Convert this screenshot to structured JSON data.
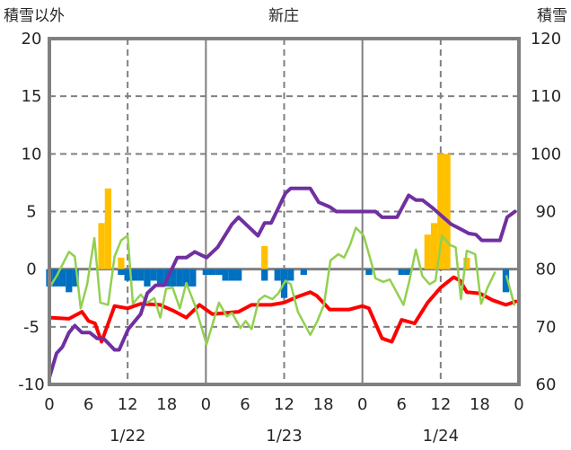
{
  "chart_data": {
    "type": "bar+line",
    "title": "新庄",
    "ylabel_left": "積雪以外",
    "ylabel_right": "積雪",
    "ylim_left": [
      -10,
      20
    ],
    "ylim_right": [
      60,
      120
    ],
    "yticks_left": [
      "20",
      "15",
      "10",
      "5",
      "0",
      "-5",
      "-10"
    ],
    "yticks_right": [
      "120",
      "110",
      "100",
      "90",
      "80",
      "70",
      "60"
    ],
    "xlim_hours": [
      0,
      72
    ],
    "xticks": [
      "0",
      "6",
      "12",
      "18",
      "0",
      "6",
      "12",
      "18",
      "0",
      "6",
      "12",
      "18",
      "0"
    ],
    "date_labels": [
      "1/22",
      "1/23",
      "1/24"
    ],
    "grid": true,
    "colors": {
      "orange_bar": "#ffc000",
      "blue_bar": "#0070c0",
      "red": "#ff0000",
      "green": "#92d050",
      "purple": "#7030a0",
      "frame": "#808080"
    },
    "bars_positive": [
      [
        8,
        4
      ],
      [
        9,
        7
      ],
      [
        11,
        1
      ],
      [
        33,
        2
      ],
      [
        58,
        3
      ],
      [
        59,
        4
      ],
      [
        60,
        10
      ],
      [
        61,
        10
      ],
      [
        64,
        1
      ]
    ],
    "bars_negative": [
      [
        0,
        -1.5
      ],
      [
        1,
        -1.5
      ],
      [
        2,
        -1.5
      ],
      [
        3,
        -2
      ],
      [
        4,
        -1.5
      ],
      [
        11,
        -0.5
      ],
      [
        12,
        -1
      ],
      [
        13,
        -1
      ],
      [
        14,
        -1
      ],
      [
        15,
        -1.5
      ],
      [
        16,
        -1
      ],
      [
        17,
        -1.3
      ],
      [
        18,
        -1.5
      ],
      [
        19,
        -1.5
      ],
      [
        20,
        -1.5
      ],
      [
        21,
        -1.5
      ],
      [
        22,
        -1.5
      ],
      [
        24,
        -0.5
      ],
      [
        25,
        -0.5
      ],
      [
        26,
        -0.5
      ],
      [
        27,
        -1
      ],
      [
        28,
        -1
      ],
      [
        29,
        -1
      ],
      [
        33,
        -1
      ],
      [
        35,
        -1
      ],
      [
        36,
        -2.5
      ],
      [
        37,
        -1
      ],
      [
        39,
        -0.5
      ],
      [
        49,
        -0.5
      ],
      [
        54,
        -0.5
      ],
      [
        55,
        -0.5
      ],
      [
        70,
        -2
      ]
    ],
    "series": [
      {
        "name": "red",
        "axis": "left",
        "points": [
          [
            0,
            -4.2
          ],
          [
            3,
            -4.3
          ],
          [
            5,
            -3.7
          ],
          [
            6,
            -4.5
          ],
          [
            7,
            -4.7
          ],
          [
            8,
            -6.3
          ],
          [
            10,
            -3.2
          ],
          [
            12,
            -3.4
          ],
          [
            14,
            -3.0
          ],
          [
            17,
            -3.1
          ],
          [
            19,
            -3.6
          ],
          [
            21,
            -4.2
          ],
          [
            23,
            -3.1
          ],
          [
            25,
            -3.9
          ],
          [
            27,
            -3.8
          ],
          [
            29,
            -3.7
          ],
          [
            31,
            -3.1
          ],
          [
            34,
            -3.1
          ],
          [
            36,
            -2.9
          ],
          [
            38,
            -2.4
          ],
          [
            40,
            -2.0
          ],
          [
            41,
            -2.3
          ],
          [
            43,
            -3.5
          ],
          [
            46,
            -3.5
          ],
          [
            48,
            -3.2
          ],
          [
            49,
            -3.4
          ],
          [
            51,
            -6.0
          ],
          [
            52.5,
            -6.3
          ],
          [
            54,
            -4.4
          ],
          [
            56,
            -4.7
          ],
          [
            58,
            -2.9
          ],
          [
            60,
            -1.6
          ],
          [
            62,
            -0.7
          ],
          [
            63,
            -1.0
          ],
          [
            64,
            -2.0
          ],
          [
            66,
            -2.1
          ],
          [
            68,
            -2.7
          ],
          [
            70,
            -3.1
          ],
          [
            71.5,
            -2.8
          ]
        ]
      },
      {
        "name": "green",
        "axis": "left",
        "points": [
          [
            0,
            -1.6
          ],
          [
            1.1,
            -0.6
          ],
          [
            3,
            1.5
          ],
          [
            3.9,
            1.1
          ],
          [
            4.8,
            -3.4
          ],
          [
            5.8,
            -1.3
          ],
          [
            6.9,
            2.7
          ],
          [
            7.8,
            -2.9
          ],
          [
            9,
            -3.1
          ],
          [
            10,
            1.1
          ],
          [
            11,
            2.5
          ],
          [
            12,
            2.9
          ],
          [
            12.8,
            -3.0
          ],
          [
            14,
            -2.2
          ],
          [
            15,
            -2.9
          ],
          [
            16.1,
            -2.5
          ],
          [
            17,
            -4.2
          ],
          [
            17.9,
            -1.7
          ],
          [
            18.9,
            -1.6
          ],
          [
            20,
            -3.4
          ],
          [
            21,
            -1.2
          ],
          [
            22.3,
            -3.1
          ],
          [
            24.1,
            -6.5
          ],
          [
            26,
            -2.9
          ],
          [
            27.2,
            -4.1
          ],
          [
            28,
            -3.8
          ],
          [
            29.3,
            -5.1
          ],
          [
            30.1,
            -4.5
          ],
          [
            31,
            -5.2
          ],
          [
            32.1,
            -2.7
          ],
          [
            33,
            -2.3
          ],
          [
            34.2,
            -2.6
          ],
          [
            35.1,
            -2.1
          ],
          [
            36.2,
            -1.0
          ],
          [
            37,
            -1.3
          ],
          [
            38.1,
            -3.7
          ],
          [
            40,
            -5.7
          ],
          [
            41.1,
            -4.5
          ],
          [
            42.1,
            -3.1
          ],
          [
            43.1,
            0.75
          ],
          [
            44.3,
            1.3
          ],
          [
            45.2,
            1.0
          ],
          [
            46.1,
            2.1
          ],
          [
            47,
            3.6
          ],
          [
            48.2,
            2.9
          ],
          [
            49.6,
            0.1
          ],
          [
            50,
            -0.8
          ],
          [
            51.2,
            -1.1
          ],
          [
            52.2,
            -0.9
          ],
          [
            54.3,
            -3.1
          ],
          [
            55.2,
            -1.0
          ],
          [
            56.2,
            1.7
          ],
          [
            57.2,
            -0.6
          ],
          [
            58.3,
            -1.3
          ],
          [
            59.2,
            -1.0
          ],
          [
            60.2,
            2.9
          ],
          [
            61.4,
            2.1
          ],
          [
            62.3,
            1.9
          ],
          [
            63.1,
            -2.6
          ],
          [
            64,
            1.6
          ],
          [
            65.3,
            1.3
          ],
          [
            66.2,
            -3.0
          ],
          [
            67.2,
            -1.6
          ],
          [
            68.3,
            -0.3
          ],
          null,
          [
            70.1,
            -0.6
          ],
          [
            71.3,
            -3.1
          ]
        ]
      },
      {
        "name": "purple",
        "axis": "right",
        "points": [
          [
            0,
            61.2
          ],
          [
            1.1,
            65.4
          ],
          [
            2,
            66.5
          ],
          [
            3,
            69
          ],
          [
            3.9,
            70.2
          ],
          [
            5,
            69
          ],
          [
            6.2,
            69
          ],
          [
            7.3,
            68
          ],
          [
            8.3,
            68
          ],
          [
            10,
            66
          ],
          [
            10.7,
            66
          ],
          [
            12.1,
            69.6
          ],
          [
            14,
            72.2
          ],
          [
            15,
            75.8
          ],
          [
            16.3,
            77.2
          ],
          [
            17.6,
            77.2
          ],
          [
            19.6,
            82
          ],
          [
            21,
            82
          ],
          [
            22.3,
            83
          ],
          [
            24.1,
            82
          ],
          [
            25.8,
            83.8
          ],
          [
            28,
            87.8
          ],
          [
            29,
            89
          ],
          [
            32,
            85.8
          ],
          [
            33,
            88
          ],
          [
            34,
            88
          ],
          [
            36.2,
            93.2
          ],
          [
            37,
            94
          ],
          [
            40,
            94
          ],
          [
            41.3,
            91.6
          ],
          [
            43,
            90.8
          ],
          [
            44,
            90
          ],
          [
            48,
            90
          ],
          [
            50,
            90
          ],
          [
            51,
            89
          ],
          [
            53.3,
            89
          ],
          [
            55.1,
            92.8
          ],
          [
            56.2,
            92
          ],
          [
            57.2,
            92
          ],
          [
            58.8,
            90.6
          ],
          [
            61.6,
            87.8
          ],
          [
            63,
            87
          ],
          [
            64.3,
            86.2
          ],
          [
            65.4,
            86
          ],
          [
            66.3,
            85
          ],
          [
            69.1,
            85
          ],
          [
            70.2,
            89
          ],
          [
            71.4,
            90
          ]
        ]
      }
    ]
  }
}
